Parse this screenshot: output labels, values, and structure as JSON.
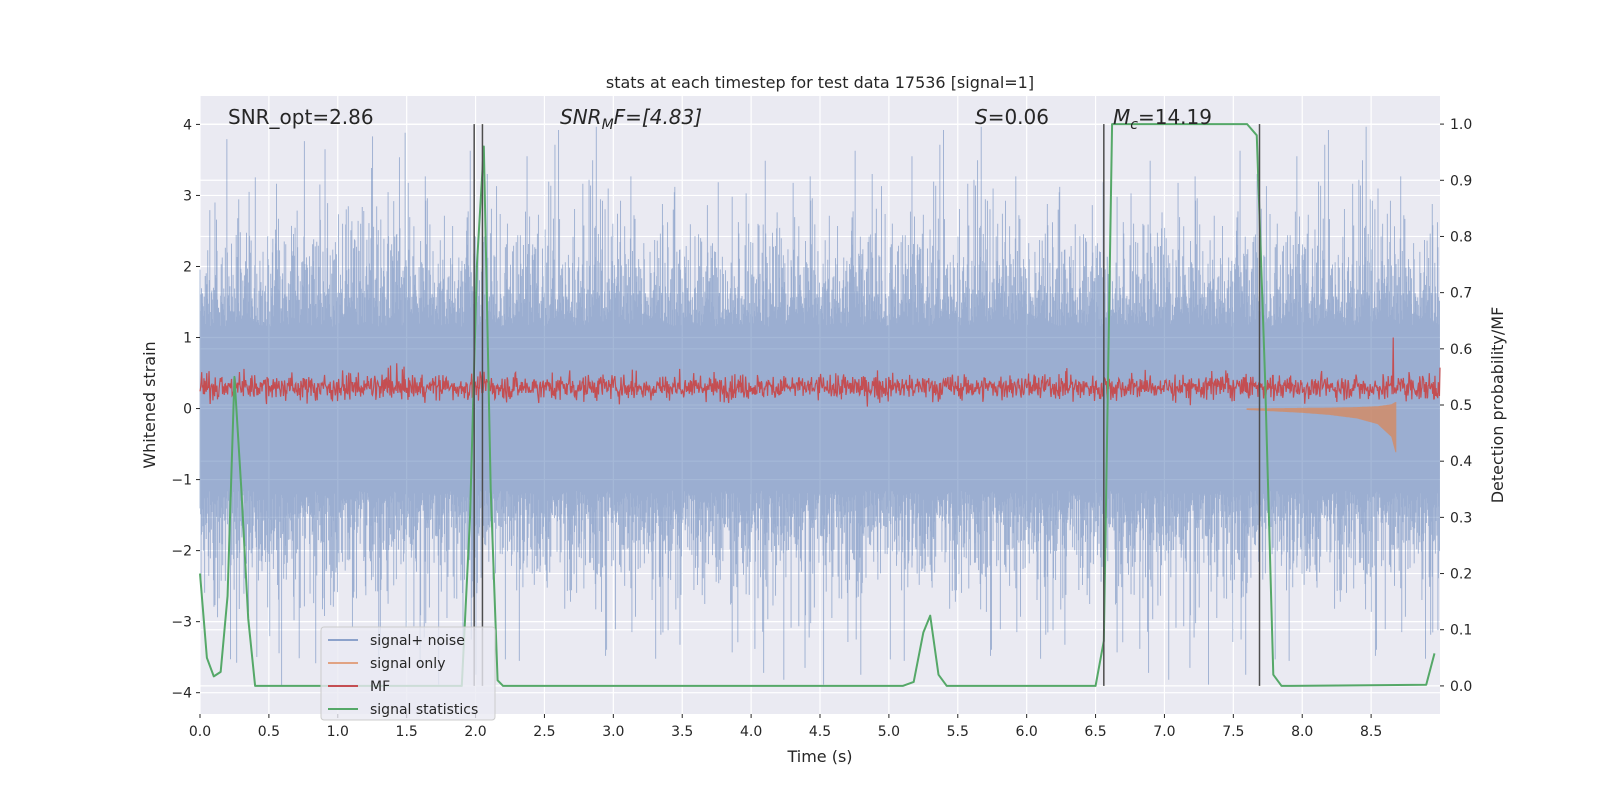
{
  "chart_data": {
    "type": "line",
    "title": "stats at each timestep for test data 17536 [signal=1]",
    "xlabel": "Time (s)",
    "ylabel": "Whitened strain",
    "ylabel_right": "Detection probability/MF",
    "xlim": [
      0,
      9.0
    ],
    "ylim": [
      -4.3,
      4.4
    ],
    "ylim_right": [
      -0.05,
      1.05
    ],
    "xticks": [
      0.0,
      0.5,
      1.0,
      1.5,
      2.0,
      2.5,
      3.0,
      3.5,
      4.0,
      4.5,
      5.0,
      5.5,
      6.0,
      6.5,
      7.0,
      7.5,
      8.0,
      8.5
    ],
    "xtick_labels": [
      "0.0",
      "0.5",
      "1.0",
      "1.5",
      "2.0",
      "2.5",
      "3.0",
      "3.5",
      "4.0",
      "4.5",
      "5.0",
      "5.5",
      "6.0",
      "6.5",
      "7.0",
      "7.5",
      "8.0",
      "8.5"
    ],
    "yticks": [
      -4,
      -3,
      -2,
      -1,
      0,
      1,
      2,
      3,
      4
    ],
    "ytick_labels": [
      "−4",
      "−3",
      "−2",
      "−1",
      "0",
      "1",
      "2",
      "3",
      "4"
    ],
    "yticks_right": [
      0.0,
      0.1,
      0.2,
      0.3,
      0.4,
      0.5,
      0.6,
      0.7,
      0.8,
      0.9,
      1.0
    ],
    "ytick_labels_right": [
      "0.0",
      "0.1",
      "0.2",
      "0.3",
      "0.4",
      "0.5",
      "0.6",
      "0.7",
      "0.8",
      "0.9",
      "1.0"
    ],
    "grid": true,
    "legend_position": "lower-left",
    "annotations": {
      "snr_opt": "SNR_opt=2.86",
      "snr_mf_main": "SNR",
      "snr_mf_sub": "M",
      "snr_mf_rest": "F=[4.83]",
      "s_main": "S",
      "s_rest": "=0.06",
      "mc_main": "M",
      "mc_sub": "c",
      "mc_rest": "=14.19"
    },
    "vlines": [
      1.99,
      2.05,
      6.56,
      7.69
    ],
    "colors": {
      "background": "#eaeaf2",
      "grid": "#ffffff",
      "noise": "#4c72b0",
      "signal": "#dd8452",
      "mf": "#c44e52",
      "stat": "#55a868",
      "vline": "#4d4d4d"
    },
    "series": [
      {
        "name": "signal+ noise",
        "axis": "left",
        "kind": "noise band",
        "envelope_upper": 2.1,
        "envelope_lower": -2.1,
        "max": 4.0,
        "min": -3.9
      },
      {
        "name": "signal only",
        "axis": "left",
        "kind": "chirp",
        "x": [
          7.6,
          7.8,
          8.0,
          8.2,
          8.4,
          8.55,
          8.65,
          8.68
        ],
        "amplitude": [
          0.02,
          0.04,
          0.06,
          0.09,
          0.14,
          0.22,
          0.4,
          0.62
        ]
      },
      {
        "name": "MF",
        "axis": "left",
        "kind": "noise band",
        "mean": 0.3,
        "envelope_upper": 0.6,
        "envelope_lower": 0.02,
        "spike": {
          "x": 8.66,
          "y": 1.0
        }
      },
      {
        "name": "signal statistics",
        "axis": "right",
        "x": [
          0.0,
          0.05,
          0.1,
          0.15,
          0.2,
          0.25,
          0.3,
          0.35,
          0.4,
          0.45,
          1.9,
          1.96,
          2.01,
          2.06,
          2.11,
          2.16,
          2.2,
          2.25,
          5.1,
          5.18,
          5.25,
          5.3,
          5.36,
          5.42,
          5.48,
          6.5,
          6.56,
          6.62,
          6.7,
          7.5,
          7.6,
          7.67,
          7.73,
          7.79,
          7.85,
          7.92,
          8.9,
          8.96
        ],
        "y": [
          0.2,
          0.05,
          0.017,
          0.025,
          0.16,
          0.55,
          0.35,
          0.12,
          0.0,
          0.0,
          0.0,
          0.3,
          0.75,
          0.96,
          0.35,
          0.01,
          0.0,
          0.0,
          0.0,
          0.007,
          0.095,
          0.125,
          0.02,
          0.0,
          0.0,
          0.0,
          0.08,
          1.0,
          1.0,
          1.0,
          1.0,
          0.98,
          0.55,
          0.02,
          0.0,
          0.0,
          0.002,
          0.058
        ]
      }
    ]
  }
}
